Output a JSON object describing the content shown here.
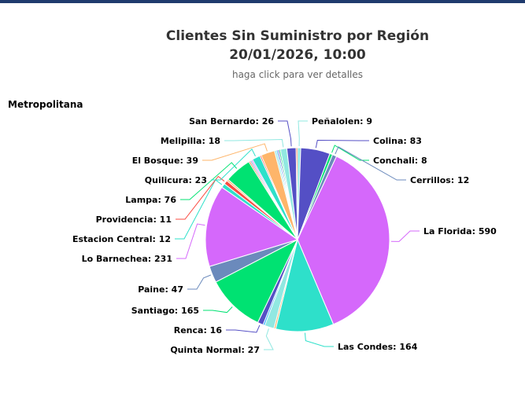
{
  "header": {
    "title_line1": "Clientes Sin Suministro por Región",
    "title_line2": "20/01/2026, 10:00",
    "subtitle": "haga click para ver detalles"
  },
  "region_label": "Metropolitana",
  "chart_data": {
    "type": "pie",
    "title": "Clientes Sin Suministro por Región 20/01/2026, 10:00",
    "subtitle": "haga click para ver detalles",
    "series_name": "Metropolitana",
    "slices": [
      {
        "name": "Peñalolen",
        "value": 9,
        "color": "#91e8e1"
      },
      {
        "name": "Colina",
        "value": 83,
        "color": "#544fc5"
      },
      {
        "name": "Conchali",
        "value": 8,
        "color": "#00e272"
      },
      {
        "name": "Cerrillos",
        "value": 12,
        "color": "#6b8abc"
      },
      {
        "name": "La Florida",
        "value": 590,
        "color": "#d568fb"
      },
      {
        "name": "Las Condes",
        "value": 164,
        "color": "#2ee0ca"
      },
      {
        "name": null,
        "value": 5,
        "color": "#feb56a"
      },
      {
        "name": "Quinta Normal",
        "value": 27,
        "color": "#91e8e1"
      },
      {
        "name": null,
        "value": 5,
        "color": "#2caffe"
      },
      {
        "name": "Renca",
        "value": 16,
        "color": "#544fc5"
      },
      {
        "name": "Santiago",
        "value": 165,
        "color": "#00e272"
      },
      {
        "name": "Paine",
        "value": 47,
        "color": "#6b8abc"
      },
      {
        "name": "Lo Barnechea",
        "value": 231,
        "color": "#d568fb"
      },
      {
        "name": "Estacion Central",
        "value": 12,
        "color": "#2ee0ca"
      },
      {
        "name": "Providencia",
        "value": 11,
        "color": "#fa4b42"
      },
      {
        "name": null,
        "value": 5,
        "color": "#feb56a"
      },
      {
        "name": "Lampa",
        "value": 76,
        "color": "#00e272"
      },
      {
        "name": null,
        "value": 4,
        "color": "#fe6a35"
      },
      {
        "name": null,
        "value": 4,
        "color": "#6b8abc"
      },
      {
        "name": null,
        "value": 4,
        "color": "#d568fb"
      },
      {
        "name": "Quilicura",
        "value": 23,
        "color": "#2ee0ca"
      },
      {
        "name": null,
        "value": 4,
        "color": "#fa4b42"
      },
      {
        "name": "El Bosque",
        "value": 39,
        "color": "#feb56a"
      },
      {
        "name": null,
        "value": 5,
        "color": "#91e8e1"
      },
      {
        "name": null,
        "value": 4,
        "color": "#2caffe"
      },
      {
        "name": null,
        "value": 4,
        "color": "#544fc5"
      },
      {
        "name": null,
        "value": 4,
        "color": "#00e272"
      },
      {
        "name": "Melipilla",
        "value": 18,
        "color": "#91e8e1"
      },
      {
        "name": "San Bernardo",
        "value": 26,
        "color": "#544fc5"
      },
      {
        "name": null,
        "value": 4,
        "color": "#fe6a35"
      }
    ]
  }
}
